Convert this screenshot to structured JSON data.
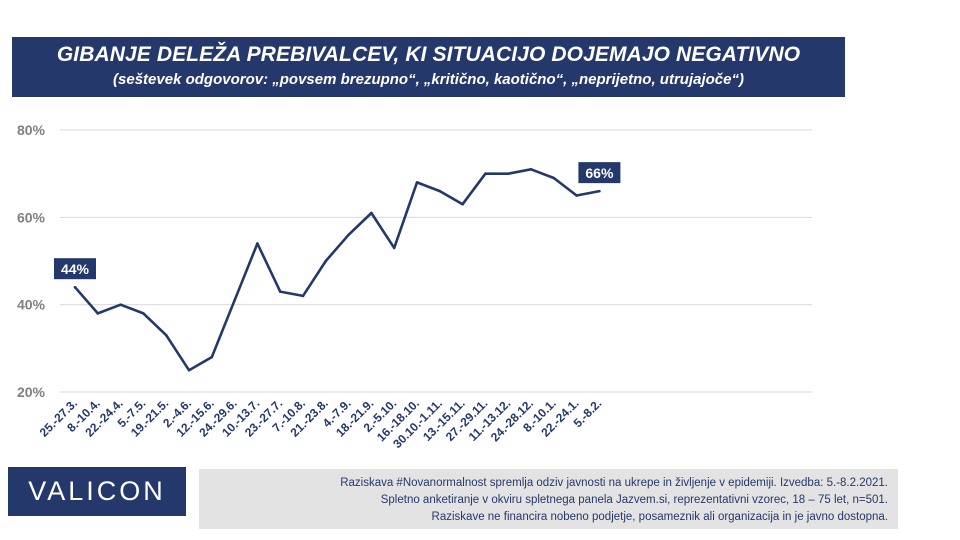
{
  "header": {
    "title": "GIBANJE DELEŽA PREBIVALCEV, KI SITUACIJO DOJEMAJO NEGATIVNO",
    "subtitle": "(seštevek odgovorov: „povsem brezupno“, „kritično, kaotično“, „neprijetno, utrujajoče“)"
  },
  "chart_data": {
    "type": "line",
    "title": "GIBANJE DELEŽA PREBIVALCEV, KI SITUACIJO DOJEMAJO NEGATIVNO",
    "subtitle": "(seštevek odgovorov: „povsem brezupno“, „kritično, kaotično“, „neprijetno, utrujajoče“)",
    "xlabel": "",
    "ylabel": "",
    "categories": [
      "25.-27.3.",
      "8.-10.4.",
      "22.-24.4.",
      "5.-7.5.",
      "19.-21.5.",
      "2.-4.6.",
      "12.-15.6.",
      "24.-29.6.",
      "10.-13.7.",
      "23.-27.7.",
      "7.-10.8.",
      "21.-23.8.",
      "4.-7.9.",
      "18.-21.9.",
      "2.-5.10.",
      "16.-18.10.",
      "30.10.-1.11.",
      "13.-15.11.",
      "27.-29.11.",
      "11.-13.12.",
      "24.-28.12.",
      "8.-10.1.",
      "22.-24.1.",
      "5.-8.2."
    ],
    "series": [
      {
        "values": [
          44,
          38,
          40,
          38,
          33,
          25,
          28,
          41,
          54,
          43,
          42,
          50,
          56,
          61,
          53,
          68,
          66,
          63,
          70,
          70,
          71,
          69,
          65,
          66
        ]
      }
    ],
    "ylim": [
      20,
      80
    ],
    "yticks": [
      "20%",
      "40%",
      "60%",
      "80%"
    ],
    "ytick_values": [
      20,
      40,
      60,
      80
    ],
    "data_labels": [
      {
        "index": 0,
        "text": "44%"
      },
      {
        "index": 23,
        "text": "66%"
      }
    ],
    "grid": true,
    "line_color": "#24386b"
  },
  "logo": {
    "text": "VALICON"
  },
  "footnote": {
    "lines": [
      "Raziskava #Novanormalnost spremlja  odziv javnosti  na ukrepe in življenje v epidemiji.  Izvedba: 5.-8.2.2021.",
      "Spletno anketiranje v okviru spletnega panela Jazvem.si, reprezentativni vzorec, 18 – 75 let, n=501.",
      "Raziskave ne financira nobeno podjetje, posameznik ali organizacija in je javno dostopna."
    ]
  }
}
